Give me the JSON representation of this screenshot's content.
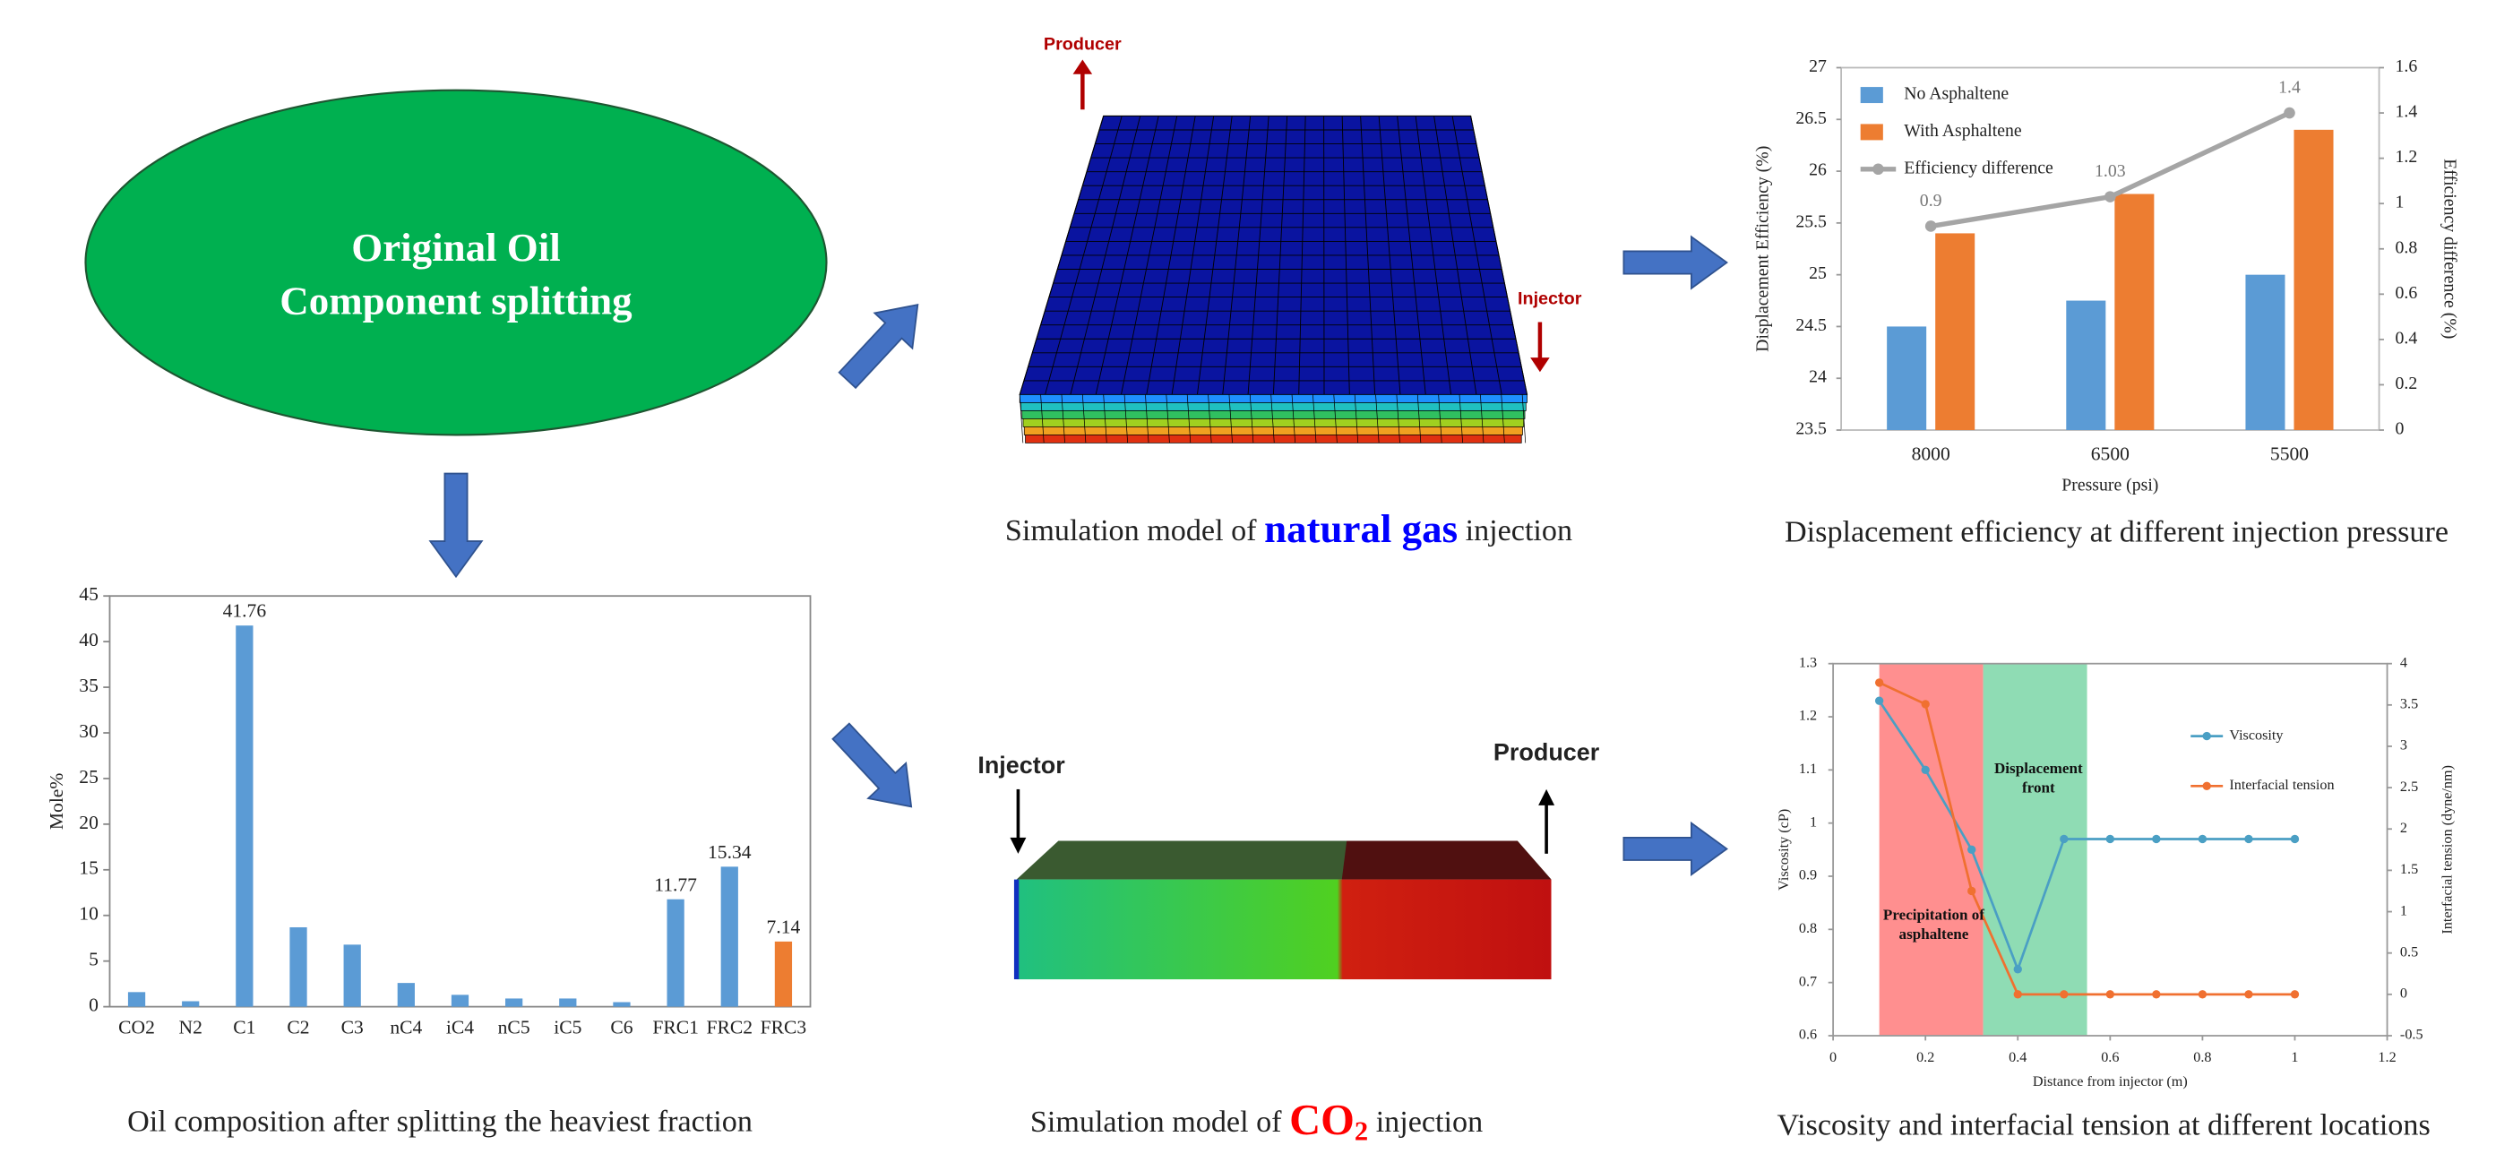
{
  "diagram": {
    "ellipse_text": "Original Oil Component splitting",
    "natural_gas_model": {
      "producer": "Producer",
      "injector": "Injector",
      "caption": [
        "Simulation model of ",
        "natural gas",
        " injection"
      ]
    },
    "co2_model": {
      "producer": "Producer",
      "injector": "Injector",
      "caption": [
        "Simulation model of ",
        "CO",
        "2",
        " injection"
      ]
    }
  },
  "chart_data": [
    {
      "type": "bar",
      "caption": "Oil composition after splitting the heaviest fraction",
      "ylabel": "Mole%",
      "categories": [
        "CO2",
        "N2",
        "C1",
        "C2",
        "C3",
        "nC4",
        "iC4",
        "nC5",
        "iC5",
        "C6",
        "FRC1",
        "FRC2",
        "FRC3"
      ],
      "values": [
        1.6,
        0.6,
        41.76,
        8.7,
        6.8,
        2.6,
        1.3,
        0.9,
        0.9,
        0.5,
        11.77,
        15.34,
        7.14
      ],
      "value_labels": [
        null,
        null,
        "41.76",
        null,
        null,
        null,
        null,
        null,
        null,
        null,
        "11.77",
        "15.34",
        "7.14"
      ],
      "colors": [
        "#5b9bd5",
        "#5b9bd5",
        "#5b9bd5",
        "#5b9bd5",
        "#5b9bd5",
        "#5b9bd5",
        "#5b9bd5",
        "#5b9bd5",
        "#5b9bd5",
        "#5b9bd5",
        "#5b9bd5",
        "#5b9bd5",
        "#ed7d31"
      ],
      "ylim": [
        0,
        45
      ],
      "yticks": [
        0,
        5,
        10,
        15,
        20,
        25,
        30,
        35,
        40,
        45
      ],
      "grid": false
    },
    {
      "type": "bar_line",
      "caption": "Displacement efficiency at different injection pressure",
      "xlabel": "Pressure (psi)",
      "ylabel": "Displacement Efficiency (%)",
      "y2label": "Efficiency difference (%)",
      "categories": [
        "8000",
        "6500",
        "5500"
      ],
      "series": [
        {
          "name": "No Asphaltene",
          "type": "bar",
          "color": "#5b9bd5",
          "values": [
            24.5,
            24.75,
            25.0
          ]
        },
        {
          "name": "With Asphaltene",
          "type": "bar",
          "color": "#ed7d31",
          "values": [
            25.4,
            25.78,
            26.4
          ]
        },
        {
          "name": "Efficiency difference",
          "type": "line",
          "axis": "y2",
          "color": "#a5a5a5",
          "values": [
            0.9,
            1.03,
            1.4
          ]
        }
      ],
      "ylim": [
        23.5,
        27
      ],
      "yticks": [
        23.5,
        24,
        24.5,
        25,
        25.5,
        26,
        26.5,
        27
      ],
      "y2lim": [
        0,
        1.6
      ],
      "y2ticks": [
        0,
        0.2,
        0.4,
        0.6,
        0.8,
        1,
        1.2,
        1.4,
        1.6
      ],
      "legend": "upper-left",
      "grid": false
    },
    {
      "type": "line",
      "caption": "Viscosity and interfacial tension at different locations",
      "xlabel": "Distance from injector (m)",
      "ylabel": "Viscosity (cP)",
      "y2label": "Interfacial tension (dyne/nm)",
      "x": [
        0.1,
        0.2,
        0.3,
        0.4,
        0.5,
        0.6,
        0.7,
        0.8,
        0.9,
        1.0
      ],
      "series": [
        {
          "name": "Viscosity",
          "color": "#4a9fc4",
          "values": [
            1.23,
            1.1,
            0.95,
            0.725,
            0.97,
            0.97,
            0.97,
            0.97,
            0.97,
            0.97
          ]
        },
        {
          "name": "Interfacial tension",
          "axis": "y2",
          "color": "#f07030",
          "values": [
            3.77,
            3.51,
            1.25,
            0,
            0,
            0,
            0,
            0,
            0,
            0
          ]
        }
      ],
      "regions": [
        {
          "x": [
            0.1,
            0.325
          ],
          "color": "#ff8f8f",
          "label": "Precipitation of asphaltene"
        },
        {
          "x": [
            0.325,
            0.55
          ],
          "color": "#8fdcb4",
          "label": "Displacement front"
        }
      ],
      "xlim": [
        0,
        1.2
      ],
      "xticks": [
        0,
        0.2,
        0.4,
        0.6,
        0.8,
        1,
        1.2
      ],
      "ylim": [
        0.6,
        1.3
      ],
      "yticks": [
        0.6,
        0.7,
        0.8,
        0.9,
        1,
        1.1,
        1.2,
        1.3
      ],
      "y2lim": [
        -0.5,
        4
      ],
      "y2ticks": [
        -0.5,
        0,
        0.5,
        1,
        1.5,
        2,
        2.5,
        3,
        3.5,
        4
      ],
      "legend": "right",
      "grid": false
    }
  ]
}
